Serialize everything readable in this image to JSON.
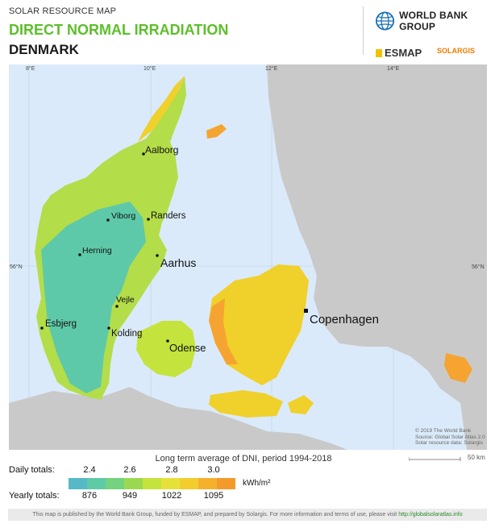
{
  "header": {
    "subtitle": "SOLAR RESOURCE MAP",
    "title": "DIRECT NORMAL IRRADIATION",
    "country": "DENMARK",
    "org": "WORLD BANK GROUP",
    "partner1": "ESMAP",
    "partner2": "SOLARGIS"
  },
  "map": {
    "lon_labels": [
      "8°E",
      "10°E",
      "12°E",
      "14°E"
    ],
    "lat_labels": [
      "56°N",
      "56°N"
    ],
    "cities": [
      {
        "name": "Aalborg",
        "major": false
      },
      {
        "name": "Viborg",
        "major": false
      },
      {
        "name": "Randers",
        "major": false
      },
      {
        "name": "Herning",
        "major": false
      },
      {
        "name": "Aarhus",
        "major": true
      },
      {
        "name": "Vejle",
        "major": false
      },
      {
        "name": "Esbjerg",
        "major": false
      },
      {
        "name": "Kolding",
        "major": false
      },
      {
        "name": "Odense",
        "major": true
      },
      {
        "name": "Copenhagen",
        "major": true
      }
    ],
    "credits": [
      "© 2019 The World Bank",
      "Source: Global Solar Atlas 2.0",
      "Solar resource data: Solargis"
    ],
    "scale_label": "50 km",
    "colors": {
      "sea": "#dbeafa",
      "land_other": "#c8c8c8",
      "low": "#5ec9a8",
      "mid": "#b4dd4a",
      "high": "#f0d02a",
      "top": "#f5a431"
    }
  },
  "legend": {
    "caption": "Long term average of DNI, period 1994-2018",
    "daily_label": "Daily totals:",
    "yearly_label": "Yearly totals:",
    "daily_ticks": [
      "2.4",
      "2.6",
      "2.8",
      "3.0"
    ],
    "yearly_ticks": [
      "876",
      "949",
      "1022",
      "1095"
    ],
    "unit": "kWh/m²",
    "colors": [
      "#56b9c6",
      "#5ecaa6",
      "#73d37e",
      "#9ad94f",
      "#c4e33d",
      "#e6e13a",
      "#f3cc2e",
      "#f5b02c",
      "#f49a2a"
    ]
  },
  "footer": {
    "text": "This map is published by the World Bank Group, funded by ESMAP, and prepared by Solargis. For more information and terms of use, please visit",
    "link": "http://globalsolaratlas.info"
  }
}
